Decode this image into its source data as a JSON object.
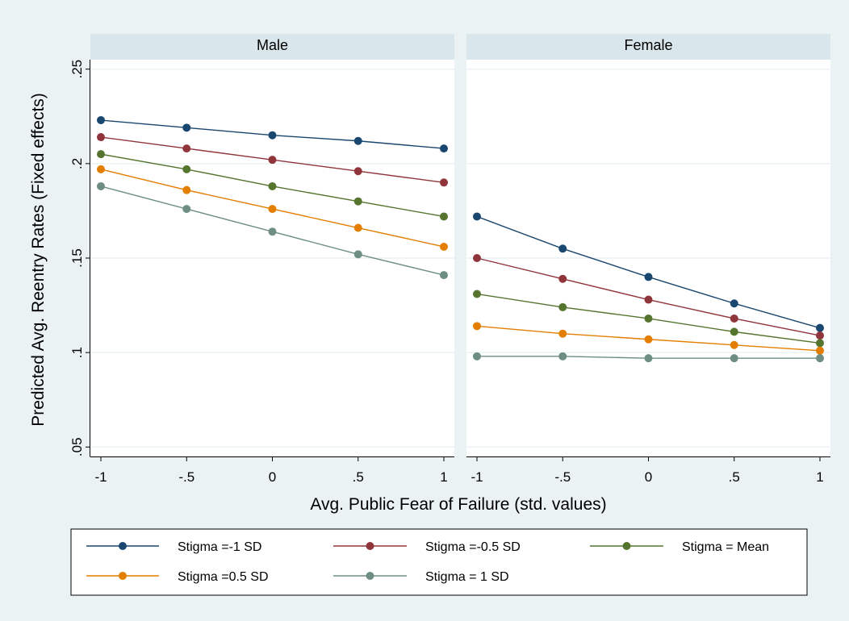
{
  "chart_data": {
    "type": "line",
    "ylabel": "Predicted Avg. Reentry Rates (Fixed effects)",
    "xlabel": "Avg. Public Fear of Failure (std. values)",
    "x": [
      -1,
      -0.5,
      0,
      0.5,
      1
    ],
    "xtick_labels": [
      "-1",
      "-.5",
      "0",
      ".5",
      "1"
    ],
    "ylim": [
      0.045,
      0.255
    ],
    "yticks": [
      0.05,
      0.1,
      0.15,
      0.2,
      0.25
    ],
    "ytick_labels": [
      ".05",
      ".1",
      ".15",
      ".2",
      ".25"
    ],
    "grid": true,
    "legend_placement": "bottom",
    "series_styles": [
      {
        "name": "Stigma =-1 SD",
        "color": "#1a476f"
      },
      {
        "name": "Stigma =-0.5 SD",
        "color": "#90353b"
      },
      {
        "name": "Stigma = Mean",
        "color": "#55752f"
      },
      {
        "name": "Stigma =0.5 SD",
        "color": "#e37e00"
      },
      {
        "name": "Stigma = 1 SD",
        "color": "#6e8e84"
      }
    ],
    "panels": [
      {
        "title": "Male",
        "series": [
          {
            "name": "Stigma =-1 SD",
            "values": [
              0.223,
              0.219,
              0.215,
              0.212,
              0.208
            ]
          },
          {
            "name": "Stigma =-0.5 SD",
            "values": [
              0.214,
              0.208,
              0.202,
              0.196,
              0.19
            ]
          },
          {
            "name": "Stigma = Mean",
            "values": [
              0.205,
              0.197,
              0.188,
              0.18,
              0.172
            ]
          },
          {
            "name": "Stigma =0.5 SD",
            "values": [
              0.197,
              0.186,
              0.176,
              0.166,
              0.156
            ]
          },
          {
            "name": "Stigma = 1 SD",
            "values": [
              0.188,
              0.176,
              0.164,
              0.152,
              0.141
            ]
          }
        ]
      },
      {
        "title": "Female",
        "series": [
          {
            "name": "Stigma =-1 SD",
            "values": [
              0.172,
              0.155,
              0.14,
              0.126,
              0.113
            ]
          },
          {
            "name": "Stigma =-0.5 SD",
            "values": [
              0.15,
              0.139,
              0.128,
              0.118,
              0.109
            ]
          },
          {
            "name": "Stigma = Mean",
            "values": [
              0.131,
              0.124,
              0.118,
              0.111,
              0.105
            ]
          },
          {
            "name": "Stigma =0.5 SD",
            "values": [
              0.114,
              0.11,
              0.107,
              0.104,
              0.101
            ]
          },
          {
            "name": "Stigma = 1 SD",
            "values": [
              0.098,
              0.098,
              0.097,
              0.097,
              0.097
            ]
          }
        ]
      }
    ]
  }
}
